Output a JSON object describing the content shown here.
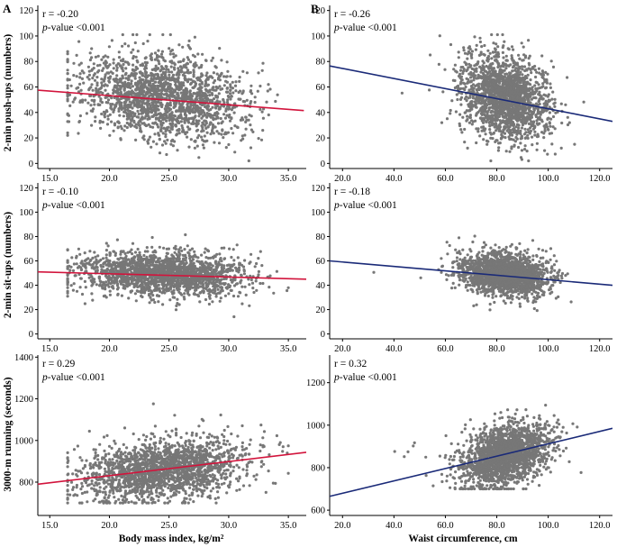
{
  "panel_labels": [
    "A",
    "B"
  ],
  "row_labels": [
    "2-min push-ups (numbers)",
    "2-min sit-ups (numbers)",
    "3000-m running (seconds)"
  ],
  "x_labels": [
    "Body mass index, kg/m²",
    "Waist circumference, cm"
  ],
  "colors": {
    "points": "#777777",
    "bmi_line": "#d2143c",
    "waist_line": "#1a2a78"
  },
  "chart_data": [
    {
      "type": "scatter",
      "id": "pushups-bmi",
      "panel": "A",
      "annotation": {
        "r": "r = -0.20",
        "p": "p-value <0.001"
      },
      "xlim": [
        14.0,
        36.5
      ],
      "ylim": [
        -4,
        124
      ],
      "xticks": [
        15.0,
        20.0,
        25.0,
        30.0,
        35.0
      ],
      "xtick_labels": [
        "15.0",
        "20.0",
        "25.0",
        "30.0",
        "35.0"
      ],
      "yticks": [
        0,
        20,
        40,
        60,
        80,
        100,
        120
      ],
      "fit": {
        "x": [
          14.0,
          36.3
        ],
        "y": [
          57.5,
          41.5
        ]
      },
      "cloud": {
        "n": 1900,
        "x_mean": 24.5,
        "x_sd": 3.4,
        "x_range": [
          16.5,
          35.0
        ],
        "y_mean": 52,
        "y_sd": 17,
        "y_range": [
          2,
          101
        ],
        "corr": -0.2
      }
    },
    {
      "type": "scatter",
      "id": "pushups-waist",
      "panel": "B",
      "annotation": {
        "r": "r = -0.26",
        "p": "p-value <0.001"
      },
      "xlim": [
        15.0,
        125.0
      ],
      "ylim": [
        -4,
        124
      ],
      "xticks": [
        20.0,
        40.0,
        60.0,
        80.0,
        100.0,
        120.0
      ],
      "xtick_labels": [
        "20.0",
        "40.0",
        "60.0",
        "80.0",
        "100.0",
        "120.0"
      ],
      "yticks": [
        0,
        20,
        40,
        60,
        80,
        100,
        120
      ],
      "fit": {
        "x": [
          15.0,
          125.0
        ],
        "y": [
          76.5,
          33.0
        ]
      },
      "cloud": {
        "n": 1900,
        "x_mean": 83,
        "x_sd": 8.5,
        "x_range": [
          30,
          118
        ],
        "y_mean": 52,
        "y_sd": 17,
        "y_range": [
          2,
          101
        ],
        "corr": -0.26
      }
    },
    {
      "type": "scatter",
      "id": "situps-bmi",
      "panel": "A",
      "annotation": {
        "r": "r = -0.10",
        "p": "p-value <0.001"
      },
      "xlim": [
        14.0,
        36.5
      ],
      "ylim": [
        -4,
        124
      ],
      "xticks": [
        15.0,
        20.0,
        25.0,
        30.0,
        35.0
      ],
      "xtick_labels": [
        "15.0",
        "20.0",
        "25.0",
        "30.0",
        "35.0"
      ],
      "yticks": [
        0,
        20,
        40,
        60,
        80,
        100,
        120
      ],
      "fit": {
        "x": [
          14.0,
          36.5
        ],
        "y": [
          51.0,
          45.0
        ]
      },
      "cloud": {
        "n": 1900,
        "x_mean": 24.5,
        "x_sd": 3.4,
        "x_range": [
          16.5,
          35.0
        ],
        "y_mean": 49,
        "y_sd": 9,
        "y_range": [
          8,
          101
        ],
        "corr": -0.1
      }
    },
    {
      "type": "scatter",
      "id": "situps-waist",
      "panel": "B",
      "annotation": {
        "r": "r = -0.18",
        "p": "p-value <0.001"
      },
      "xlim": [
        15.0,
        125.0
      ],
      "ylim": [
        -4,
        124
      ],
      "xticks": [
        20.0,
        40.0,
        60.0,
        80.0,
        100.0,
        120.0
      ],
      "xtick_labels": [
        "20.0",
        "40.0",
        "60.0",
        "80.0",
        "100.0",
        "120.0"
      ],
      "yticks": [
        0,
        20,
        40,
        60,
        80,
        100,
        120
      ],
      "fit": {
        "x": [
          15.0,
          125.0
        ],
        "y": [
          60.0,
          40.0
        ]
      },
      "cloud": {
        "n": 1900,
        "x_mean": 83,
        "x_sd": 8.5,
        "x_range": [
          30,
          118
        ],
        "y_mean": 49,
        "y_sd": 9,
        "y_range": [
          8,
          101
        ],
        "corr": -0.18
      }
    },
    {
      "type": "scatter",
      "id": "running-bmi",
      "panel": "A",
      "annotation": {
        "r": "r = 0.29",
        "p": "p-value <0.001"
      },
      "xlim": [
        14.0,
        36.5
      ],
      "ylim": [
        640,
        1410
      ],
      "xticks": [
        15.0,
        20.0,
        25.0,
        30.0,
        35.0
      ],
      "xtick_labels": [
        "15.0",
        "20.0",
        "25.0",
        "30.0",
        "35.0"
      ],
      "yticks": [
        600,
        800,
        1000,
        1200,
        1400
      ],
      "fit": {
        "x": [
          14.0,
          36.5
        ],
        "y": [
          790,
          943
        ]
      },
      "cloud": {
        "n": 1900,
        "x_mean": 24.5,
        "x_sd": 3.4,
        "x_range": [
          16.5,
          35.0
        ],
        "y_mean": 860,
        "y_sd": 75,
        "y_range": [
          700,
          1330
        ],
        "corr": 0.29
      }
    },
    {
      "type": "scatter",
      "id": "running-waist",
      "panel": "B",
      "annotation": {
        "r": "r = 0.32",
        "p": "p-value <0.001"
      },
      "xlim": [
        15.0,
        125.0
      ],
      "ylim": [
        575,
        1330
      ],
      "xticks": [
        20.0,
        40.0,
        60.0,
        80.0,
        100.0,
        120.0
      ],
      "xtick_labels": [
        "20.0",
        "40.0",
        "60.0",
        "80.0",
        "100.0",
        "120.0"
      ],
      "yticks": [
        600,
        800,
        1000,
        1200
      ],
      "fit": {
        "x": [
          15.0,
          125.0
        ],
        "y": [
          665,
          985
        ]
      },
      "cloud": {
        "n": 1900,
        "x_mean": 83,
        "x_sd": 8.5,
        "x_range": [
          30,
          118
        ],
        "y_mean": 860,
        "y_sd": 75,
        "y_range": [
          700,
          1300
        ],
        "corr": 0.32
      }
    }
  ]
}
